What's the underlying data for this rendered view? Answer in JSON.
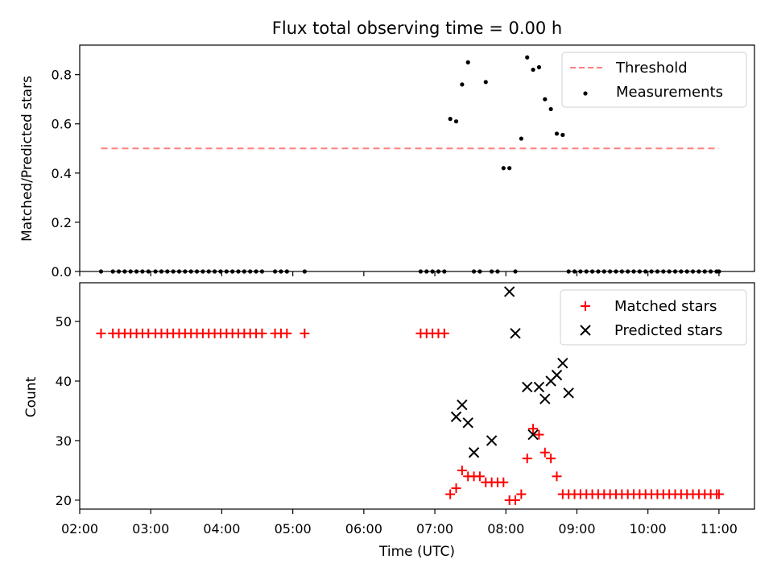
{
  "chart_data": [
    {
      "type": "scatter",
      "title": "Flux total observing time = 0.00 h",
      "xlabel": "",
      "ylabel": "Matched/Predicted stars",
      "xlim": [
        "02:00",
        "11:30"
      ],
      "ylim": [
        0,
        0.92
      ],
      "yticks": [
        0.0,
        0.2,
        0.4,
        0.6,
        0.8
      ],
      "ytick_labels": [
        "0.0",
        "0.2",
        "0.4",
        "0.6",
        "0.8"
      ],
      "grid": false,
      "legend_position": "top-right",
      "series": [
        {
          "name": "Threshold",
          "kind": "dashed-line",
          "color": "#ff7f7f",
          "x": [
            "02:18",
            "11:00"
          ],
          "y": [
            0.5,
            0.5
          ]
        },
        {
          "name": "Measurements",
          "kind": "dot",
          "color": "#000000",
          "x": [
            "02:18",
            "02:28",
            "02:33",
            "02:38",
            "02:43",
            "02:48",
            "02:53",
            "02:58",
            "03:04",
            "03:09",
            "03:14",
            "03:19",
            "03:24",
            "03:29",
            "03:34",
            "03:39",
            "03:44",
            "03:49",
            "03:54",
            "03:59",
            "04:04",
            "04:09",
            "04:14",
            "04:19",
            "04:24",
            "04:29",
            "04:34",
            "04:45",
            "04:50",
            "04:55",
            "05:10",
            "06:48",
            "06:53",
            "06:58",
            "07:03",
            "07:08",
            "07:13",
            "07:18",
            "07:23",
            "07:28",
            "07:33",
            "07:38",
            "07:43",
            "07:48",
            "07:53",
            "07:58",
            "08:03",
            "08:08",
            "08:13",
            "08:18",
            "08:23",
            "08:28",
            "08:33",
            "08:38",
            "08:43",
            "08:48",
            "08:53",
            "08:58",
            "09:03",
            "09:08",
            "09:13",
            "09:18",
            "09:23",
            "09:28",
            "09:33",
            "09:38",
            "09:43",
            "09:48",
            "09:53",
            "09:58",
            "10:03",
            "10:08",
            "10:13",
            "10:18",
            "10:23",
            "10:28",
            "10:33",
            "10:38",
            "10:43",
            "10:48",
            "10:53",
            "10:58",
            "11:00"
          ],
          "y": [
            0,
            0,
            0,
            0,
            0,
            0,
            0,
            0,
            0,
            0,
            0,
            0,
            0,
            0,
            0,
            0,
            0,
            0,
            0,
            0,
            0,
            0,
            0,
            0,
            0,
            0,
            0,
            0,
            0,
            0,
            0,
            0,
            0,
            0,
            0,
            0,
            0.62,
            0.61,
            0.76,
            0.85,
            0,
            0,
            0.77,
            0,
            0,
            0.42,
            0.42,
            0,
            0.54,
            0.87,
            0.82,
            0.83,
            0.7,
            0.66,
            0.56,
            0.555,
            0,
            0,
            0,
            0,
            0,
            0,
            0,
            0,
            0,
            0,
            0,
            0,
            0,
            0,
            0,
            0,
            0,
            0,
            0,
            0,
            0,
            0,
            0,
            0,
            0,
            0,
            0
          ]
        }
      ]
    },
    {
      "type": "scatter",
      "title": "",
      "xlabel": "Time (UTC)",
      "ylabel": "Count",
      "xlim": [
        "02:00",
        "11:30"
      ],
      "ylim": [
        18.5,
        56.5
      ],
      "yticks": [
        20,
        30,
        40,
        50
      ],
      "ytick_labels": [
        "20",
        "30",
        "40",
        "50"
      ],
      "xticks": [
        "02:00",
        "03:00",
        "04:00",
        "05:00",
        "06:00",
        "07:00",
        "08:00",
        "09:00",
        "10:00",
        "11:00"
      ],
      "xtick_labels": [
        "02:00",
        "03:00",
        "04:00",
        "05:00",
        "06:00",
        "07:00",
        "08:00",
        "09:00",
        "10:00",
        "11:00"
      ],
      "grid": false,
      "legend_position": "top-right",
      "series": [
        {
          "name": "Matched stars",
          "kind": "plus",
          "color": "#ff0000",
          "x": [
            "02:18",
            "02:28",
            "02:33",
            "02:38",
            "02:43",
            "02:48",
            "02:53",
            "02:58",
            "03:04",
            "03:09",
            "03:14",
            "03:19",
            "03:24",
            "03:29",
            "03:34",
            "03:39",
            "03:44",
            "03:49",
            "03:54",
            "03:59",
            "04:04",
            "04:09",
            "04:14",
            "04:19",
            "04:24",
            "04:29",
            "04:34",
            "04:45",
            "04:50",
            "04:55",
            "05:10",
            "06:48",
            "06:53",
            "06:58",
            "07:03",
            "07:08",
            "07:13",
            "07:18",
            "07:23",
            "07:28",
            "07:33",
            "07:38",
            "07:43",
            "07:48",
            "07:53",
            "07:58",
            "08:03",
            "08:08",
            "08:13",
            "08:18",
            "08:23",
            "08:28",
            "08:33",
            "08:38",
            "08:43",
            "08:48",
            "08:53",
            "08:58",
            "09:03",
            "09:08",
            "09:13",
            "09:18",
            "09:23",
            "09:28",
            "09:33",
            "09:38",
            "09:43",
            "09:48",
            "09:53",
            "09:58",
            "10:03",
            "10:08",
            "10:13",
            "10:18",
            "10:23",
            "10:28",
            "10:33",
            "10:38",
            "10:43",
            "10:48",
            "10:53",
            "10:58",
            "11:00"
          ],
          "y": [
            48,
            48,
            48,
            48,
            48,
            48,
            48,
            48,
            48,
            48,
            48,
            48,
            48,
            48,
            48,
            48,
            48,
            48,
            48,
            48,
            48,
            48,
            48,
            48,
            48,
            48,
            48,
            48,
            48,
            48,
            48,
            48,
            48,
            48,
            48,
            48,
            21,
            22,
            25,
            24,
            24,
            24,
            23,
            23,
            23,
            23,
            20,
            20,
            21,
            27,
            32,
            31,
            28,
            27,
            24,
            21,
            21,
            21,
            21,
            21,
            21,
            21,
            21,
            21,
            21,
            21,
            21,
            21,
            21,
            21,
            21,
            21,
            21,
            21,
            21,
            21,
            21,
            21,
            21,
            21,
            21,
            21,
            21
          ]
        },
        {
          "name": "Predicted stars",
          "kind": "x",
          "color": "#000000",
          "x": [
            "07:18",
            "07:23",
            "07:28",
            "07:33",
            "07:48",
            "08:03",
            "08:08",
            "08:18",
            "08:23",
            "08:28",
            "08:33",
            "08:38",
            "08:43",
            "08:48",
            "08:53"
          ],
          "y": [
            34,
            36,
            33,
            28,
            30,
            55,
            48,
            39,
            31,
            39,
            37,
            40,
            41,
            43,
            38
          ]
        }
      ]
    }
  ]
}
